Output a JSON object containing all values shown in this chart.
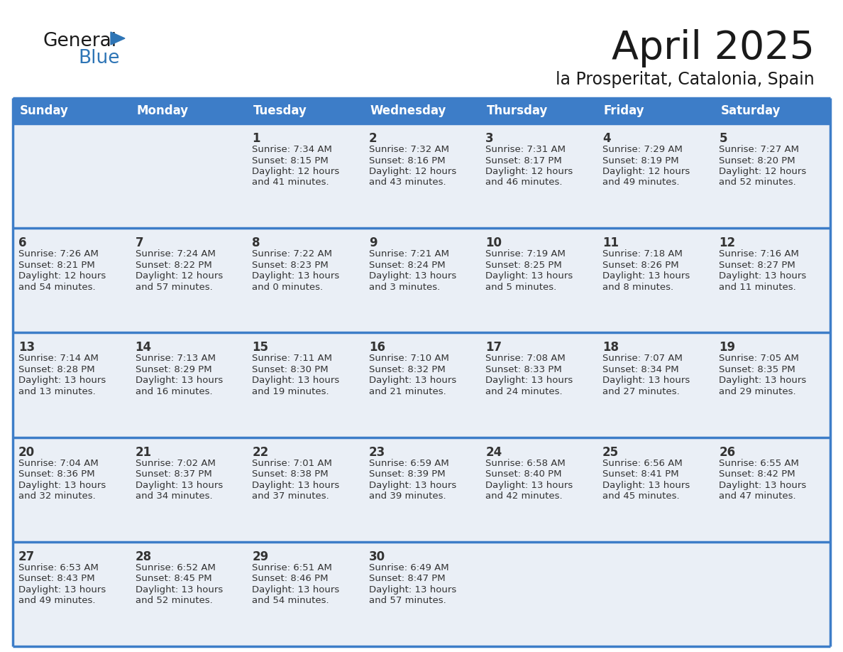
{
  "title": "April 2025",
  "subtitle": "la Prosperitat, Catalonia, Spain",
  "header_bg": "#3D7DC8",
  "header_text_color": "#FFFFFF",
  "cell_bg": "#EAEFF6",
  "cell_border_color": "#3D7DC8",
  "day_headers": [
    "Sunday",
    "Monday",
    "Tuesday",
    "Wednesday",
    "Thursday",
    "Friday",
    "Saturday"
  ],
  "title_color": "#1a1a1a",
  "subtitle_color": "#1a1a1a",
  "text_color": "#333333",
  "logo_general_color": "#1a1a1a",
  "logo_blue_color": "#2E75B6",
  "weeks": [
    [
      {
        "day": null,
        "info": null
      },
      {
        "day": null,
        "info": null
      },
      {
        "day": 1,
        "info": "Sunrise: 7:34 AM\nSunset: 8:15 PM\nDaylight: 12 hours\nand 41 minutes."
      },
      {
        "day": 2,
        "info": "Sunrise: 7:32 AM\nSunset: 8:16 PM\nDaylight: 12 hours\nand 43 minutes."
      },
      {
        "day": 3,
        "info": "Sunrise: 7:31 AM\nSunset: 8:17 PM\nDaylight: 12 hours\nand 46 minutes."
      },
      {
        "day": 4,
        "info": "Sunrise: 7:29 AM\nSunset: 8:19 PM\nDaylight: 12 hours\nand 49 minutes."
      },
      {
        "day": 5,
        "info": "Sunrise: 7:27 AM\nSunset: 8:20 PM\nDaylight: 12 hours\nand 52 minutes."
      }
    ],
    [
      {
        "day": 6,
        "info": "Sunrise: 7:26 AM\nSunset: 8:21 PM\nDaylight: 12 hours\nand 54 minutes."
      },
      {
        "day": 7,
        "info": "Sunrise: 7:24 AM\nSunset: 8:22 PM\nDaylight: 12 hours\nand 57 minutes."
      },
      {
        "day": 8,
        "info": "Sunrise: 7:22 AM\nSunset: 8:23 PM\nDaylight: 13 hours\nand 0 minutes."
      },
      {
        "day": 9,
        "info": "Sunrise: 7:21 AM\nSunset: 8:24 PM\nDaylight: 13 hours\nand 3 minutes."
      },
      {
        "day": 10,
        "info": "Sunrise: 7:19 AM\nSunset: 8:25 PM\nDaylight: 13 hours\nand 5 minutes."
      },
      {
        "day": 11,
        "info": "Sunrise: 7:18 AM\nSunset: 8:26 PM\nDaylight: 13 hours\nand 8 minutes."
      },
      {
        "day": 12,
        "info": "Sunrise: 7:16 AM\nSunset: 8:27 PM\nDaylight: 13 hours\nand 11 minutes."
      }
    ],
    [
      {
        "day": 13,
        "info": "Sunrise: 7:14 AM\nSunset: 8:28 PM\nDaylight: 13 hours\nand 13 minutes."
      },
      {
        "day": 14,
        "info": "Sunrise: 7:13 AM\nSunset: 8:29 PM\nDaylight: 13 hours\nand 16 minutes."
      },
      {
        "day": 15,
        "info": "Sunrise: 7:11 AM\nSunset: 8:30 PM\nDaylight: 13 hours\nand 19 minutes."
      },
      {
        "day": 16,
        "info": "Sunrise: 7:10 AM\nSunset: 8:32 PM\nDaylight: 13 hours\nand 21 minutes."
      },
      {
        "day": 17,
        "info": "Sunrise: 7:08 AM\nSunset: 8:33 PM\nDaylight: 13 hours\nand 24 minutes."
      },
      {
        "day": 18,
        "info": "Sunrise: 7:07 AM\nSunset: 8:34 PM\nDaylight: 13 hours\nand 27 minutes."
      },
      {
        "day": 19,
        "info": "Sunrise: 7:05 AM\nSunset: 8:35 PM\nDaylight: 13 hours\nand 29 minutes."
      }
    ],
    [
      {
        "day": 20,
        "info": "Sunrise: 7:04 AM\nSunset: 8:36 PM\nDaylight: 13 hours\nand 32 minutes."
      },
      {
        "day": 21,
        "info": "Sunrise: 7:02 AM\nSunset: 8:37 PM\nDaylight: 13 hours\nand 34 minutes."
      },
      {
        "day": 22,
        "info": "Sunrise: 7:01 AM\nSunset: 8:38 PM\nDaylight: 13 hours\nand 37 minutes."
      },
      {
        "day": 23,
        "info": "Sunrise: 6:59 AM\nSunset: 8:39 PM\nDaylight: 13 hours\nand 39 minutes."
      },
      {
        "day": 24,
        "info": "Sunrise: 6:58 AM\nSunset: 8:40 PM\nDaylight: 13 hours\nand 42 minutes."
      },
      {
        "day": 25,
        "info": "Sunrise: 6:56 AM\nSunset: 8:41 PM\nDaylight: 13 hours\nand 45 minutes."
      },
      {
        "day": 26,
        "info": "Sunrise: 6:55 AM\nSunset: 8:42 PM\nDaylight: 13 hours\nand 47 minutes."
      }
    ],
    [
      {
        "day": 27,
        "info": "Sunrise: 6:53 AM\nSunset: 8:43 PM\nDaylight: 13 hours\nand 49 minutes."
      },
      {
        "day": 28,
        "info": "Sunrise: 6:52 AM\nSunset: 8:45 PM\nDaylight: 13 hours\nand 52 minutes."
      },
      {
        "day": 29,
        "info": "Sunrise: 6:51 AM\nSunset: 8:46 PM\nDaylight: 13 hours\nand 54 minutes."
      },
      {
        "day": 30,
        "info": "Sunrise: 6:49 AM\nSunset: 8:47 PM\nDaylight: 13 hours\nand 57 minutes."
      },
      {
        "day": null,
        "info": null
      },
      {
        "day": null,
        "info": null
      },
      {
        "day": null,
        "info": null
      }
    ]
  ]
}
